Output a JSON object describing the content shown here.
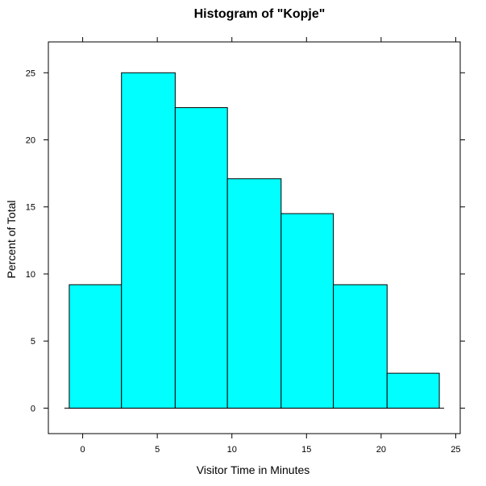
{
  "chart_data": {
    "type": "bar",
    "title": "Histogram of  \"Kopje\"",
    "xlabel": "Visitor Time in Minutes",
    "ylabel": "Percent of Total",
    "xlim": [
      -2.3,
      25.3
    ],
    "ylim": [
      -1.9,
      27.3
    ],
    "x_ticks": [
      0,
      5,
      10,
      15,
      20,
      25
    ],
    "y_ticks": [
      0,
      5,
      10,
      15,
      20,
      25
    ],
    "bins": [
      {
        "start": -0.9,
        "end": 2.6,
        "value": 9.2
      },
      {
        "start": 2.6,
        "end": 6.2,
        "value": 25.0
      },
      {
        "start": 6.2,
        "end": 9.7,
        "value": 22.4
      },
      {
        "start": 9.7,
        "end": 13.3,
        "value": 17.1
      },
      {
        "start": 13.3,
        "end": 16.8,
        "value": 14.5
      },
      {
        "start": 16.8,
        "end": 20.4,
        "value": 9.2
      },
      {
        "start": 20.4,
        "end": 23.9,
        "value": 2.6
      }
    ],
    "bar_color": "#00ffff",
    "grid": false,
    "legend": "none"
  }
}
